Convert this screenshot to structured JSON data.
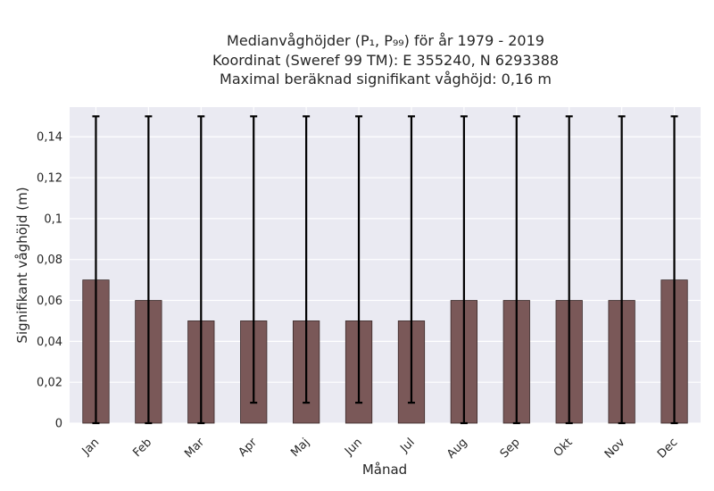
{
  "chart_data": {
    "type": "bar",
    "title_lines": [
      "Medianvåghöjder (P₁, P₉₉) för år 1979 - 2019",
      "Koordinat (Sweref 99 TM): E 355240, N 6293388",
      "Maximal beräknad signifikant våghöjd: 0,16 m"
    ],
    "xlabel": "Månad",
    "ylabel": "Signifikant våghöjd (m)",
    "categories": [
      "Jan",
      "Feb",
      "Mar",
      "Apr",
      "Maj",
      "Jun",
      "Jul",
      "Aug",
      "Sep",
      "Okt",
      "Nov",
      "Dec"
    ],
    "values": [
      0.07,
      0.06,
      0.05,
      0.05,
      0.05,
      0.05,
      0.05,
      0.06,
      0.06,
      0.06,
      0.06,
      0.07
    ],
    "err_low": [
      0.0,
      0.0,
      0.0,
      0.01,
      0.01,
      0.01,
      0.01,
      0.0,
      0.0,
      0.0,
      0.0,
      0.0
    ],
    "err_high": [
      0.15,
      0.15,
      0.15,
      0.15,
      0.15,
      0.15,
      0.15,
      0.15,
      0.15,
      0.15,
      0.15,
      0.15
    ],
    "yticks": [
      0,
      0.02,
      0.04,
      0.06,
      0.08,
      0.1,
      0.12,
      0.14
    ],
    "ytick_labels": [
      "0",
      "0,02",
      "0,04",
      "0,06",
      "0,08",
      "0,1",
      "0,12",
      "0,14"
    ],
    "ylim": [
      0,
      0.1545
    ],
    "grid": true,
    "colors": {
      "bar": "#7a5858",
      "plot_bg": "#eaeaf2",
      "error_bar": "#000000"
    }
  }
}
